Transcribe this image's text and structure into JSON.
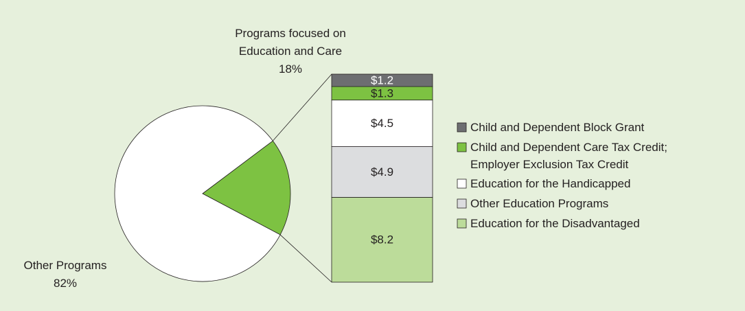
{
  "chart_data": [
    {
      "type": "pie",
      "categories": [
        "Programs focused on Education and Care",
        "Other Programs"
      ],
      "values": [
        18,
        82
      ],
      "value_labels": [
        "18%",
        "82%"
      ],
      "colors": [
        "#7dc242",
        "#ffffff"
      ]
    },
    {
      "type": "bar",
      "stacked": true,
      "series": [
        {
          "name": "Child and Dependent Block Grant",
          "color": "#6d6e71",
          "values": [
            1.2
          ],
          "value_labels": [
            "$1.2"
          ]
        },
        {
          "name": "Child and Dependent Care Tax Credit; Employer Exclusion Tax Credit",
          "color": "#7dc242",
          "values": [
            1.3
          ],
          "value_labels": [
            "$1.3"
          ]
        },
        {
          "name": "Education for the Handicapped",
          "color": "#ffffff",
          "values": [
            4.5
          ],
          "value_labels": [
            "$4.5"
          ]
        },
        {
          "name": "Other Education Programs",
          "color": "#dcdddf",
          "values": [
            4.9
          ],
          "value_labels": [
            "$4.9"
          ]
        },
        {
          "name": "Education for the Disadvantaged",
          "color": "#bcdc9a",
          "values": [
            8.2
          ],
          "value_labels": [
            "$8.2"
          ]
        }
      ]
    }
  ]
}
